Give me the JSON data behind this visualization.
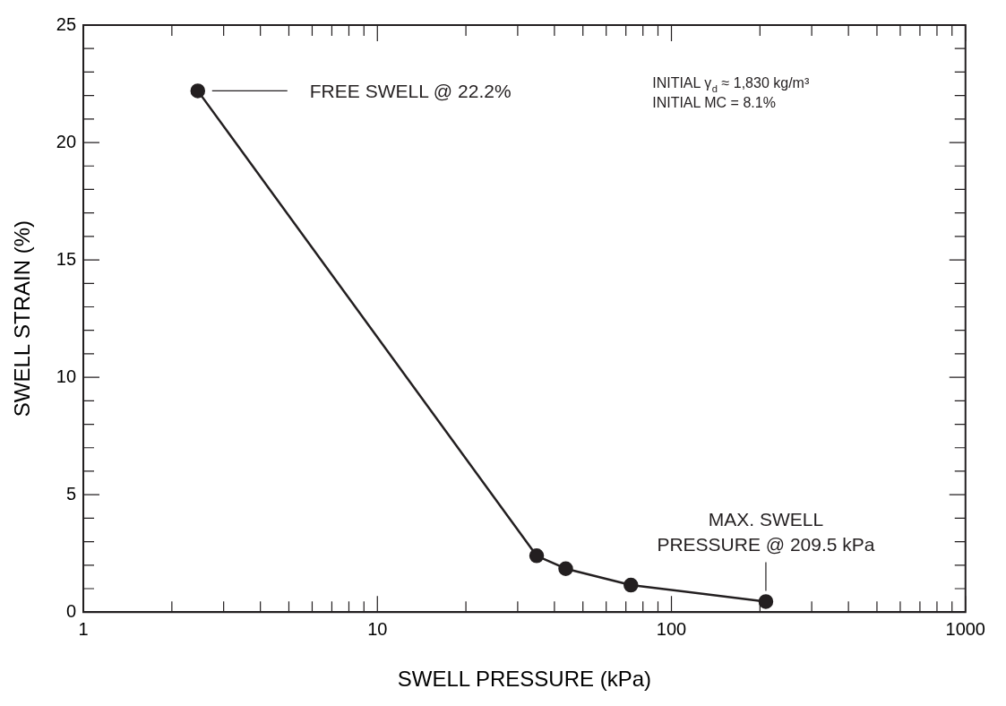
{
  "chart_data": {
    "type": "line",
    "xlabel": "SWELL PRESSURE (kPa)",
    "ylabel": "SWELL STRAIN (%)",
    "log": "x",
    "marker": "circle",
    "line_style": "solid",
    "grid": false,
    "legend": false,
    "x": [
      2.45,
      34.8,
      43.7,
      72.8,
      209.5
    ],
    "series": [
      {
        "color": "#231f20",
        "values": [
          22.2,
          2.4,
          1.85,
          1.15,
          0.45
        ]
      }
    ],
    "xlim": [
      1,
      1000
    ],
    "xticks": [
      1,
      {
        "value": 2,
        "label": null
      },
      {
        "value": 3,
        "label": null
      },
      {
        "value": 4,
        "label": null
      },
      {
        "value": 5,
        "label": null
      },
      {
        "value": 6,
        "label": null
      },
      {
        "value": 7,
        "label": null
      },
      {
        "value": 8,
        "label": null
      },
      {
        "value": 9,
        "label": null
      },
      10,
      {
        "value": 20,
        "label": null
      },
      {
        "value": 30,
        "label": null
      },
      {
        "value": 40,
        "label": null
      },
      {
        "value": 50,
        "label": null
      },
      {
        "value": 60,
        "label": null
      },
      {
        "value": 70,
        "label": null
      },
      {
        "value": 80,
        "label": null
      },
      {
        "value": 90,
        "label": null
      },
      100,
      {
        "value": 200,
        "label": null
      },
      {
        "value": 300,
        "label": null
      },
      {
        "value": 400,
        "label": null
      },
      {
        "value": 500,
        "label": null
      },
      {
        "value": 600,
        "label": null
      },
      {
        "value": 700,
        "label": null
      },
      {
        "value": 800,
        "label": null
      },
      {
        "value": 900,
        "label": null
      },
      1000
    ],
    "ylim": [
      0,
      25
    ],
    "yticks": [
      0,
      {
        "value": 1,
        "label": null
      },
      {
        "value": 2,
        "label": null
      },
      {
        "value": 3,
        "label": null
      },
      {
        "value": 4,
        "label": null
      },
      5,
      {
        "value": 6,
        "label": null
      },
      {
        "value": 7,
        "label": null
      },
      {
        "value": 8,
        "label": null
      },
      {
        "value": 9,
        "label": null
      },
      10,
      {
        "value": 11,
        "label": null
      },
      {
        "value": 12,
        "label": null
      },
      {
        "value": 13,
        "label": null
      },
      {
        "value": 14,
        "label": null
      },
      15,
      {
        "value": 16,
        "label": null
      },
      {
        "value": 17,
        "label": null
      },
      {
        "value": 18,
        "label": null
      },
      {
        "value": 19,
        "label": null
      },
      20,
      {
        "value": 21,
        "label": null
      },
      {
        "value": 22,
        "label": null
      },
      {
        "value": 23,
        "label": null
      },
      {
        "value": 24,
        "label": null
      },
      25
    ],
    "annotations": [
      "FREE SWELL @ 22.2%",
      {
        "text": "MAX. SWELL\nPRESSURE @ 209.5 kPa",
        "x": 209.5,
        "y": 0.45
      },
      "INITIAL γ$_{d}$ ≈ 1,830 kg/m³",
      "INITIAL MC = 8.1%"
    ]
  }
}
